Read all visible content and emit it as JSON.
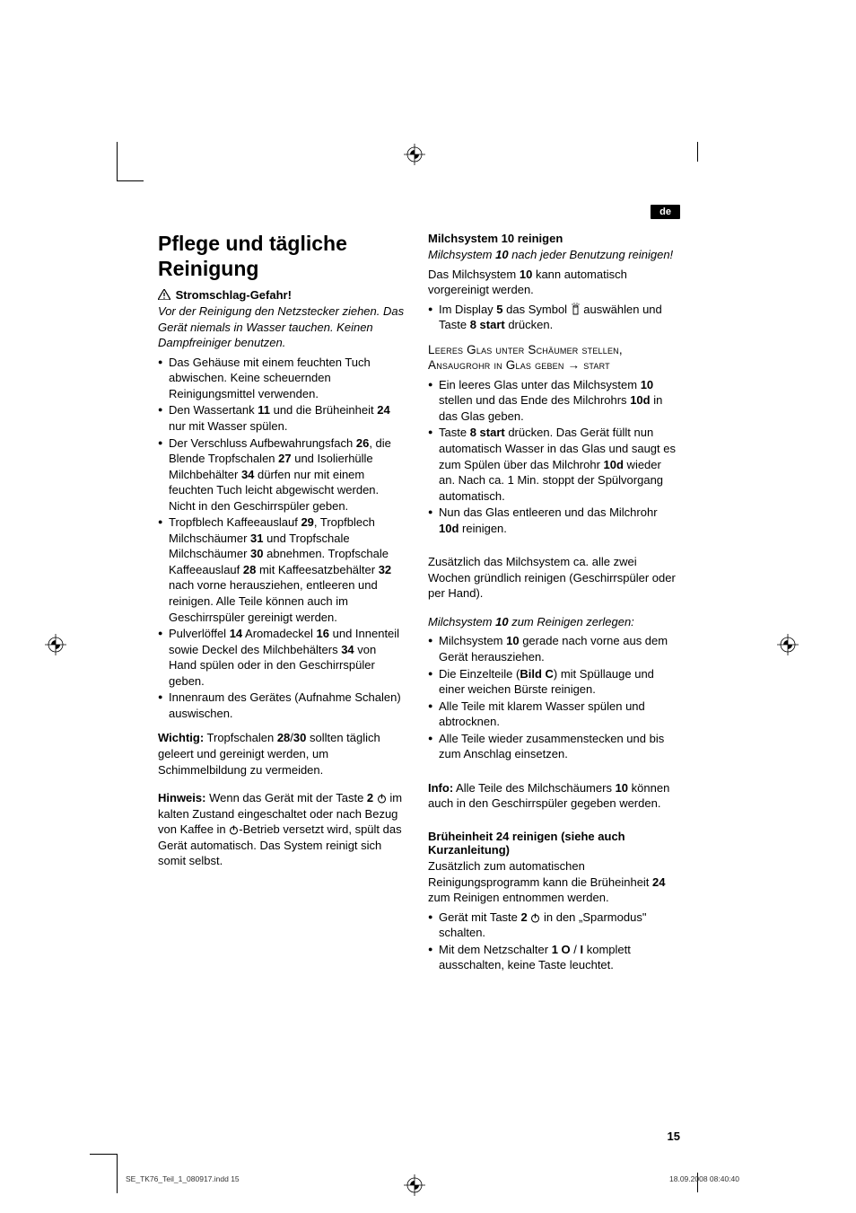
{
  "lang_badge": "de",
  "page_number": "15",
  "footer": {
    "left": "SE_TK76_Teil_1_080917.indd   15",
    "right": "18.09.2008   08:40:40"
  },
  "left_col": {
    "h1": "Pflege und tägliche Reinigung",
    "warn_title": "Stromschlag-Gefahr!",
    "warn_body": "Vor der Reinigung den Netzstecker ziehen. Das Gerät niemals in Wasser tauchen. Keinen Dampfreiniger benutzen.",
    "bullets": [
      "Das Gehäuse mit einem feuchten Tuch abwischen. Keine scheuernden Reinigungsmittel verwenden.",
      "Den Wassertank <b>11</b> und die Brüheinheit <b>24</b> nur mit Wasser spülen.",
      "Der Verschluss Aufbewahrungsfach <b>26</b>, die Blende Tropfschalen <b>27</b> und Isolierhülle Milchbehälter <b>34</b> dürfen nur mit einem feuchten Tuch leicht abgewischt werden. Nicht in den Geschirrspüler geben.",
      "Tropfblech Kaffeeauslauf <b>29</b>, Tropfblech Milchschäumer <b>31</b> und Tropfschale Milchschäumer <b>30</b> abnehmen. Tropfschale Kaffeeauslauf <b>28</b> mit Kaffeesatzbehälter <b>32</b> nach vorne herausziehen, entleeren und reinigen. Alle Teile können auch im Geschirrspüler gereinigt werden.",
      "Pulverlöffel <b>14</b> Aromadeckel <b>16</b> und Innenteil sowie Deckel des Milchbehälters <b>34</b> von Hand spülen oder in den Geschirrspüler geben.",
      "Innenraum des Gerätes (Aufnahme Schalen) auswischen."
    ],
    "wichtig_label": "Wichtig:",
    "wichtig_body": " Tropfschalen <b>28</b>/<b>30</b> sollten täglich geleert und gereinigt werden, um Schimmelbildung zu vermeiden.",
    "hinweis_label": "Hinweis:",
    "hinweis_body_1": " Wenn das Gerät mit der Taste <b>2</b> ",
    "hinweis_body_2": " im kalten Zustand eingeschaltet oder nach Bezug von Kaffee in ",
    "hinweis_body_3": "-Betrieb versetzt wird, spült das Gerät automatisch. Das System reinigt sich somit selbst."
  },
  "right_col": {
    "sec1_title": "Milchsystem 10 reinigen",
    "sec1_italic": "Milchsystem <b>10</b> nach jeder Benutzung reinigen!",
    "sec1_p": "Das Milchsystem <b>10</b> kann automatisch vorgereinigt werden.",
    "sec1_b1_a": "Im Display <b>5</b> das Symbol ",
    "sec1_b1_b": " auswählen und Taste <b>8 start</b> drücken.",
    "smallcaps_lines": "Leeres Glas unter Schäumer stellen, Ansaugrohr in Glas geben → start",
    "sec1_bullets2": [
      "Ein leeres Glas unter das Milchsystem <b>10</b> stellen und das Ende des Milchrohrs <b>10d</b> in das Glas geben.",
      "Taste <b>8 start</b> drücken. Das Gerät füllt nun automatisch Wasser in das Glas und saugt es zum Spülen über das Milchrohr <b>10d</b> wieder an. Nach ca. 1 Min. stoppt der Spülvorgang automatisch.",
      "Nun das Glas entleeren und das Milchrohr <b>10d</b> reinigen."
    ],
    "sec1_after": "Zusätzlich das Milchsystem ca. alle zwei Wochen gründlich reinigen (Geschirrspüler oder per Hand).",
    "sec1_italic2": "Milchsystem <b>10</b> zum Reinigen zerlegen:",
    "sec1_bullets3": [
      "Milchsystem <b>10</b> gerade nach vorne aus dem Gerät herausziehen.",
      "Die Einzelteile (<b>Bild C</b>) mit Spüllauge und einer weichen Bürste reinigen.",
      "Alle Teile mit klarem Wasser spülen und abtrocknen.",
      "Alle Teile wieder zusammenstecken und bis zum Anschlag einsetzen."
    ],
    "info_label": "Info:",
    "info_body": " Alle Teile des Milchschäumers <b>10</b> können auch in den Geschirrspüler gegeben werden.",
    "sec2_title": "Brüheinheit 24 reinigen (siehe auch Kurzanleitung)",
    "sec2_p": "Zusätzlich zum automatischen Reinigungsprogramm kann die Brüheinheit <b>24</b> zum Reinigen entnommen werden.",
    "sec2_b1_a": "Gerät mit Taste <b>2</b> ",
    "sec2_b1_b": " in den „Sparmodus\" schalten.",
    "sec2_b2": "Mit dem Netzschalter <b>1 O</b> / <b>I</b> komplett ausschalten, keine Taste leuchtet."
  }
}
